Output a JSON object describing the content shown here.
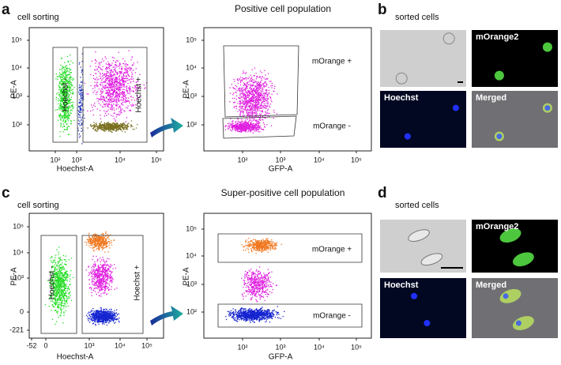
{
  "panels": [
    {
      "label": "a",
      "subtitle": "cell sorting",
      "title": "Positive cell population",
      "plots": [
        {
          "x_label": "Hoechst-A",
          "y_label": "PE-A",
          "x_ticks": [
            "10²",
            "10³",
            "10⁴",
            "10⁵"
          ],
          "y_ticks": [
            "10⁵",
            "10⁴",
            "10³",
            "10²"
          ],
          "gates": [
            "Hoechst -",
            "Hoechst +"
          ]
        },
        {
          "x_label": "GFP-A",
          "y_label": "PE-A",
          "x_ticks": [
            "10²",
            "10³",
            "10⁴",
            "10⁵"
          ],
          "y_ticks": [
            "10⁵",
            "10⁴",
            "10³",
            "10²"
          ],
          "gates": [
            "mOrange +",
            "mOrange -"
          ]
        }
      ]
    },
    {
      "label": "b",
      "subtitle": "sorted cells",
      "images": [
        "mOrange2",
        "Hoechst",
        "Merged"
      ]
    },
    {
      "label": "c",
      "subtitle": "cell sorting",
      "title": "Super-positive cell population",
      "plots": [
        {
          "x_label": "Hoechst-A",
          "y_label": "PE-A",
          "x_ticks": [
            "-52",
            "0",
            "10³",
            "10⁴",
            "10⁵"
          ],
          "y_ticks": [
            "10⁵",
            "10⁴",
            "10³",
            "0",
            "-221"
          ],
          "gates": [
            "Hoechst -",
            "Hoechst +"
          ]
        },
        {
          "x_label": "GFP-A",
          "y_label": "PE-A",
          "x_ticks": [
            "10²",
            "10³",
            "10⁴",
            "10⁵"
          ],
          "y_ticks": [
            "10⁵",
            "10⁴",
            "10³",
            "10²"
          ],
          "gates": [
            "mOrange +",
            "mOrange -"
          ]
        }
      ]
    },
    {
      "label": "d",
      "subtitle": "sorted cells",
      "images": [
        "mOrange2",
        "Hoechst",
        "Merged"
      ]
    }
  ]
}
